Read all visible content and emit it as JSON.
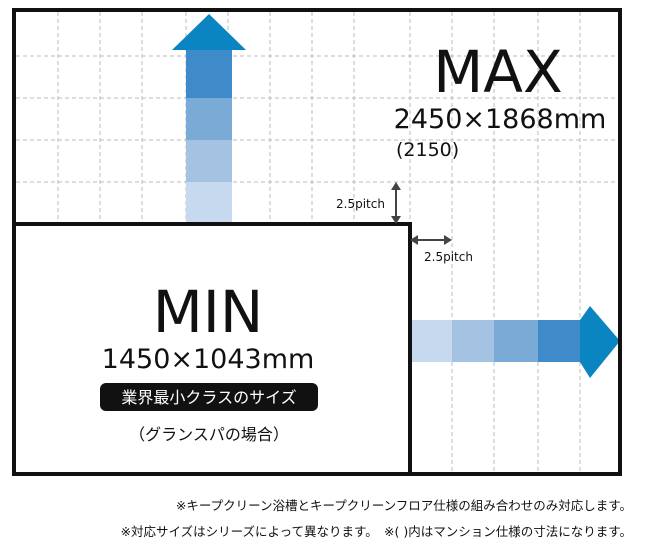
{
  "max": {
    "label": "MAX",
    "size": "2450×1868mm",
    "alt_size": "(2150)"
  },
  "min": {
    "label": "MIN",
    "size": "1450×1043mm",
    "badge": "業界最小クラスのサイズ",
    "note": "（グランスパの場合）"
  },
  "pitch_labels": [
    "2.5pitch",
    "2.5pitch"
  ],
  "footnotes": [
    "※キープクリーン浴槽とキープクリーンフロア仕様の組み合わせのみ対応します。",
    "※対応サイズはシリーズによって異なります。　※( )内はマンション仕様の寸法になります。"
  ]
}
